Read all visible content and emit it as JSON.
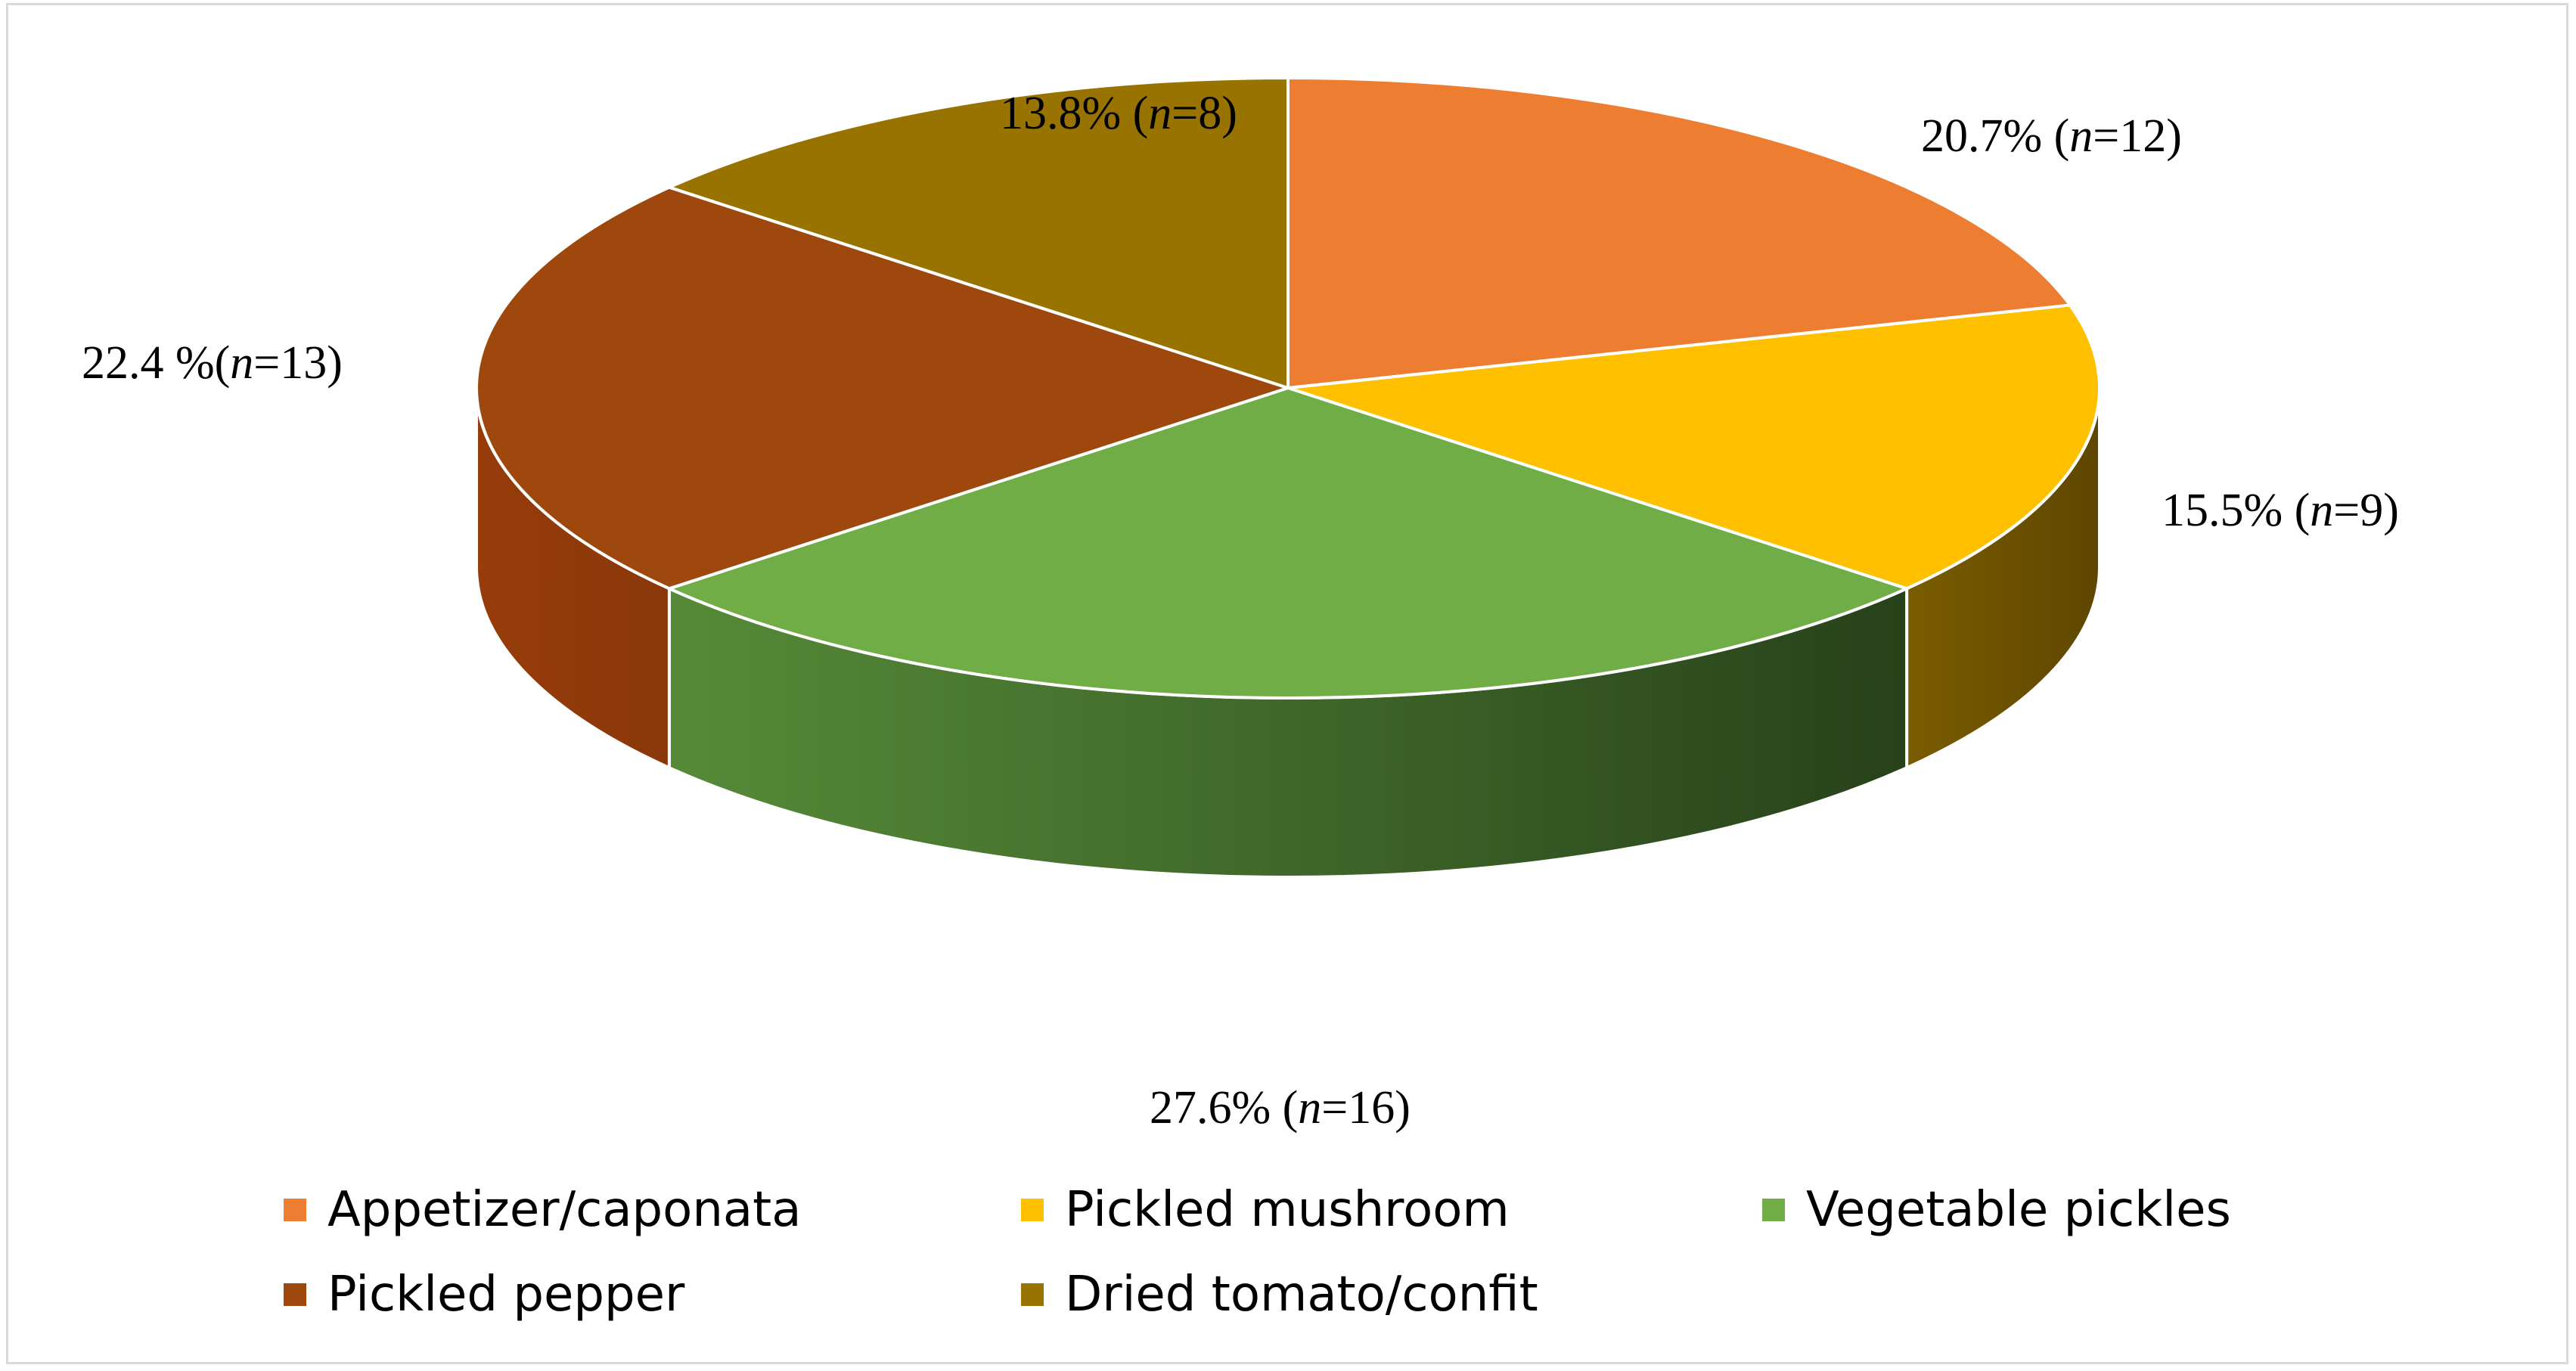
{
  "chart_data": {
    "type": "pie",
    "style": "3d",
    "categories": [
      "Appetizer/caponata",
      "Pickled mushroom",
      "Vegetable pickles",
      "Pickled pepper",
      "Dried tomato/confit"
    ],
    "values": [
      20.7,
      15.5,
      27.6,
      22.4,
      13.8
    ],
    "counts": [
      12,
      9,
      16,
      13,
      8
    ],
    "colors": [
      "#ED7D31",
      "#FFC000",
      "#70AD47",
      "#9E480E",
      "#997300"
    ],
    "data_labels": [
      {
        "pct": "20.7% (",
        "n": "n",
        "rest": "=12)"
      },
      {
        "pct": "15.5% (",
        "n": "n",
        "rest": "=9)"
      },
      {
        "pct": "27.6% (",
        "n": "n",
        "rest": "=16)"
      },
      {
        "pct": "22.4 %(",
        "n": "n",
        "rest": "=13)"
      },
      {
        "pct": "13.8% (",
        "n": "n",
        "rest": "=8)"
      }
    ],
    "legend_position": "bottom"
  }
}
